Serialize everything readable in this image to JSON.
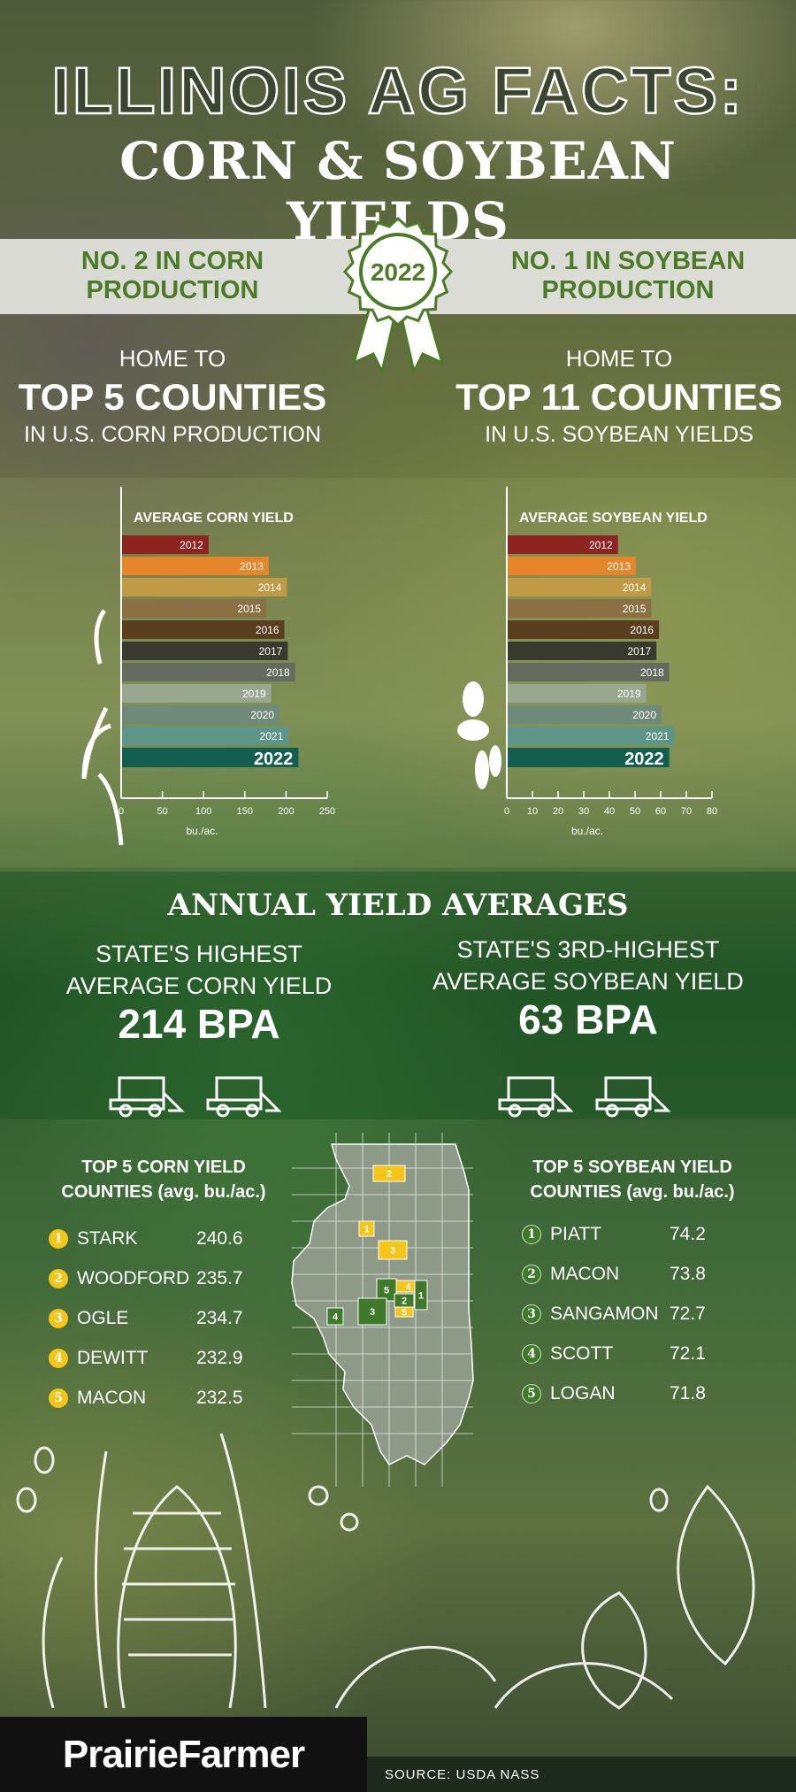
{
  "header": {
    "title_line1": "ILLINOIS AG FACTS:",
    "title_line2": "CORN & SOYBEAN YIELDS"
  },
  "banner": {
    "left": "NO. 2 IN CORN PRODUCTION",
    "left_1": "NO. 2 IN CORN",
    "left_2": "PRODUCTION",
    "badge_year": "2022",
    "right_1": "NO. 1 IN SOYBEAN",
    "right_2": "PRODUCTION"
  },
  "home": {
    "corn": {
      "a": "HOME TO",
      "b": "TOP 5 COUNTIES",
      "c": "IN U.S. CORN PRODUCTION"
    },
    "soy": {
      "a": "HOME TO",
      "b": "TOP 11 COUNTIES",
      "c": "IN U.S. SOYBEAN YIELDS"
    }
  },
  "chart_data": [
    {
      "type": "bar",
      "orientation": "horizontal",
      "title": "AVERAGE CORN YIELD",
      "xlabel": "bu./ac.",
      "xlim": [
        0,
        250
      ],
      "xticks": [
        0,
        50,
        100,
        150,
        200,
        250
      ],
      "categories": [
        "2012",
        "2013",
        "2014",
        "2015",
        "2016",
        "2017",
        "2018",
        "2019",
        "2020",
        "2021",
        "2022"
      ],
      "values": [
        105,
        178,
        200,
        175,
        197,
        201,
        210,
        181,
        191,
        202,
        214
      ],
      "colors": [
        "#8e2420",
        "#e5862a",
        "#c19a45",
        "#8a7043",
        "#5a3f1e",
        "#393a2e",
        "#646a5e",
        "#98a88e",
        "#6f8a78",
        "#5d9588",
        "#145e50"
      ]
    },
    {
      "type": "bar",
      "orientation": "horizontal",
      "title": "AVERAGE SOYBEAN YIELD",
      "xlabel": "bu./ac.",
      "xlim": [
        0,
        80
      ],
      "xticks": [
        0,
        10,
        20,
        30,
        40,
        50,
        60,
        70,
        80
      ],
      "categories": [
        "2012",
        "2013",
        "2014",
        "2015",
        "2016",
        "2017",
        "2018",
        "2019",
        "2020",
        "2021",
        "2022"
      ],
      "values": [
        43,
        50,
        56,
        56,
        59,
        58,
        63,
        54,
        60,
        65,
        63
      ],
      "colors": [
        "#8e2420",
        "#e5862a",
        "#c19a45",
        "#8a7043",
        "#5a3f1e",
        "#393a2e",
        "#646a5e",
        "#98a88e",
        "#6f8a78",
        "#5d9588",
        "#145e50"
      ]
    }
  ],
  "annual": {
    "title": "ANNUAL YIELD AVERAGES",
    "corn_1": "STATE'S HIGHEST",
    "corn_2": "AVERAGE CORN YIELD",
    "corn_value": "214 BPA",
    "soy_1": "STATE'S 3RD-HIGHEST",
    "soy_2": "AVERAGE SOYBEAN YIELD",
    "soy_value": "63 BPA"
  },
  "corn_counties": {
    "title_1": "TOP 5 CORN YIELD",
    "title_2": "COUNTIES (avg. bu./ac.)",
    "items": [
      {
        "rank": "1",
        "name": "STARK",
        "value": "240.6"
      },
      {
        "rank": "2",
        "name": "WOODFORD",
        "value": "235.7"
      },
      {
        "rank": "3",
        "name": "OGLE",
        "value": "234.7"
      },
      {
        "rank": "4",
        "name": "DEWITT",
        "value": "232.9"
      },
      {
        "rank": "5",
        "name": "MACON",
        "value": "232.5"
      }
    ]
  },
  "soy_counties": {
    "title_1": "TOP 5 SOYBEAN YIELD",
    "title_2": "COUNTIES (avg. bu./ac.)",
    "items": [
      {
        "rank": "1",
        "name": "PIATT",
        "value": "74.2"
      },
      {
        "rank": "2",
        "name": "MACON",
        "value": "73.8"
      },
      {
        "rank": "3",
        "name": "SANGAMON",
        "value": "72.7"
      },
      {
        "rank": "4",
        "name": "SCOTT",
        "value": "72.1"
      },
      {
        "rank": "5",
        "name": "LOGAN",
        "value": "71.8"
      }
    ]
  },
  "colors": {
    "corn_marker": "#f5c518",
    "soy_marker": "#3f7a2a",
    "banner_text": "#4b7b26"
  },
  "footer": {
    "logo": "PrairieFarmer",
    "source": "SOURCE: USDA NASS"
  }
}
